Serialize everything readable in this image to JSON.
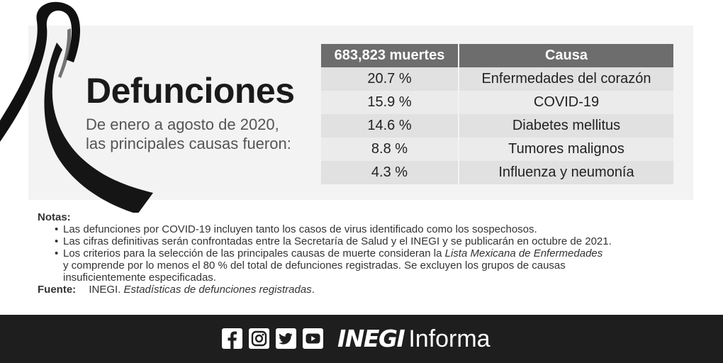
{
  "headline": {
    "title": "Defunciones",
    "subtitle_line1": "De enero a agosto de 2020,",
    "subtitle_line2": "las principales causas fueron:"
  },
  "table": {
    "header": [
      "683,823 muertes",
      "Causa"
    ],
    "rows": [
      {
        "percent": "20.7 %",
        "cause": "Enfermedades del corazón"
      },
      {
        "percent": "15.9 %",
        "cause": "COVID-19"
      },
      {
        "percent": "14.6 %",
        "cause": "Diabetes mellitus"
      },
      {
        "percent": "8.8 %",
        "cause": "Tumores malignos"
      },
      {
        "percent": "4.3 %",
        "cause": "Influenza y neumonía"
      }
    ]
  },
  "notes": {
    "heading": "Notas:",
    "items": [
      {
        "text": "Las defunciones por COVID-19 incluyen tanto los casos de virus identificado como los sospechosos."
      },
      {
        "text": "Las cifras definitivas serán confrontadas entre la Secretaría de Salud y el INEGI y se publicarán en octubre de 2021."
      },
      {
        "text_before": "Los criterios para la selección de las principales causas de muerte consideran la ",
        "text_italic": "Lista Mexicana de Enfermedades",
        "line2": "y comprende por lo menos el 80 % del total de defunciones registradas. Se excluyen los grupos de causas",
        "line3": "insuficientemente especificadas."
      }
    ]
  },
  "source": {
    "label": "Fuente:",
    "org": "INEGI.",
    "title": "Estadísticas de defunciones registradas"
  },
  "footer": {
    "social_icons": [
      "facebook-icon",
      "instagram-icon",
      "twitter-icon",
      "youtube-icon"
    ],
    "brand": "INEGI",
    "brand_sub": "Informa"
  },
  "colors": {
    "panel": "#f3f3f3",
    "table_header": "#6d6d6d",
    "row_odd": "#e1e1e1",
    "row_even": "#ebebeb",
    "footer": "#1e1e1e",
    "ribbon": "#111111"
  }
}
